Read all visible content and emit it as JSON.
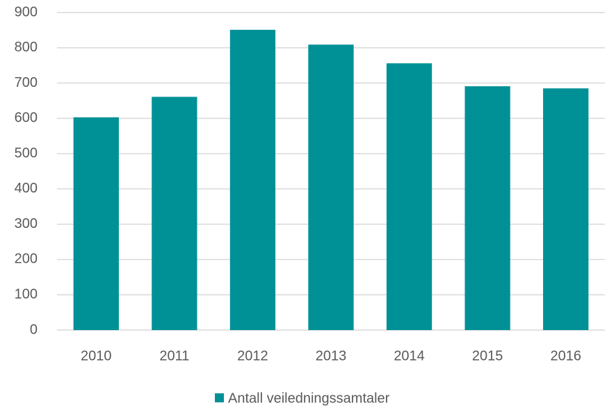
{
  "chart_data": {
    "type": "bar",
    "categories": [
      "2010",
      "2011",
      "2012",
      "2013",
      "2014",
      "2015",
      "2016"
    ],
    "series": [
      {
        "name": "Antall veiledningssamtaler",
        "color": "#009196",
        "values": [
          603,
          661,
          851,
          809,
          756,
          691,
          685
        ]
      }
    ],
    "ylim": [
      0,
      900
    ],
    "yticks": [
      0,
      100,
      200,
      300,
      400,
      500,
      600,
      700,
      800,
      900
    ],
    "grid": true,
    "legend": "bottom"
  }
}
